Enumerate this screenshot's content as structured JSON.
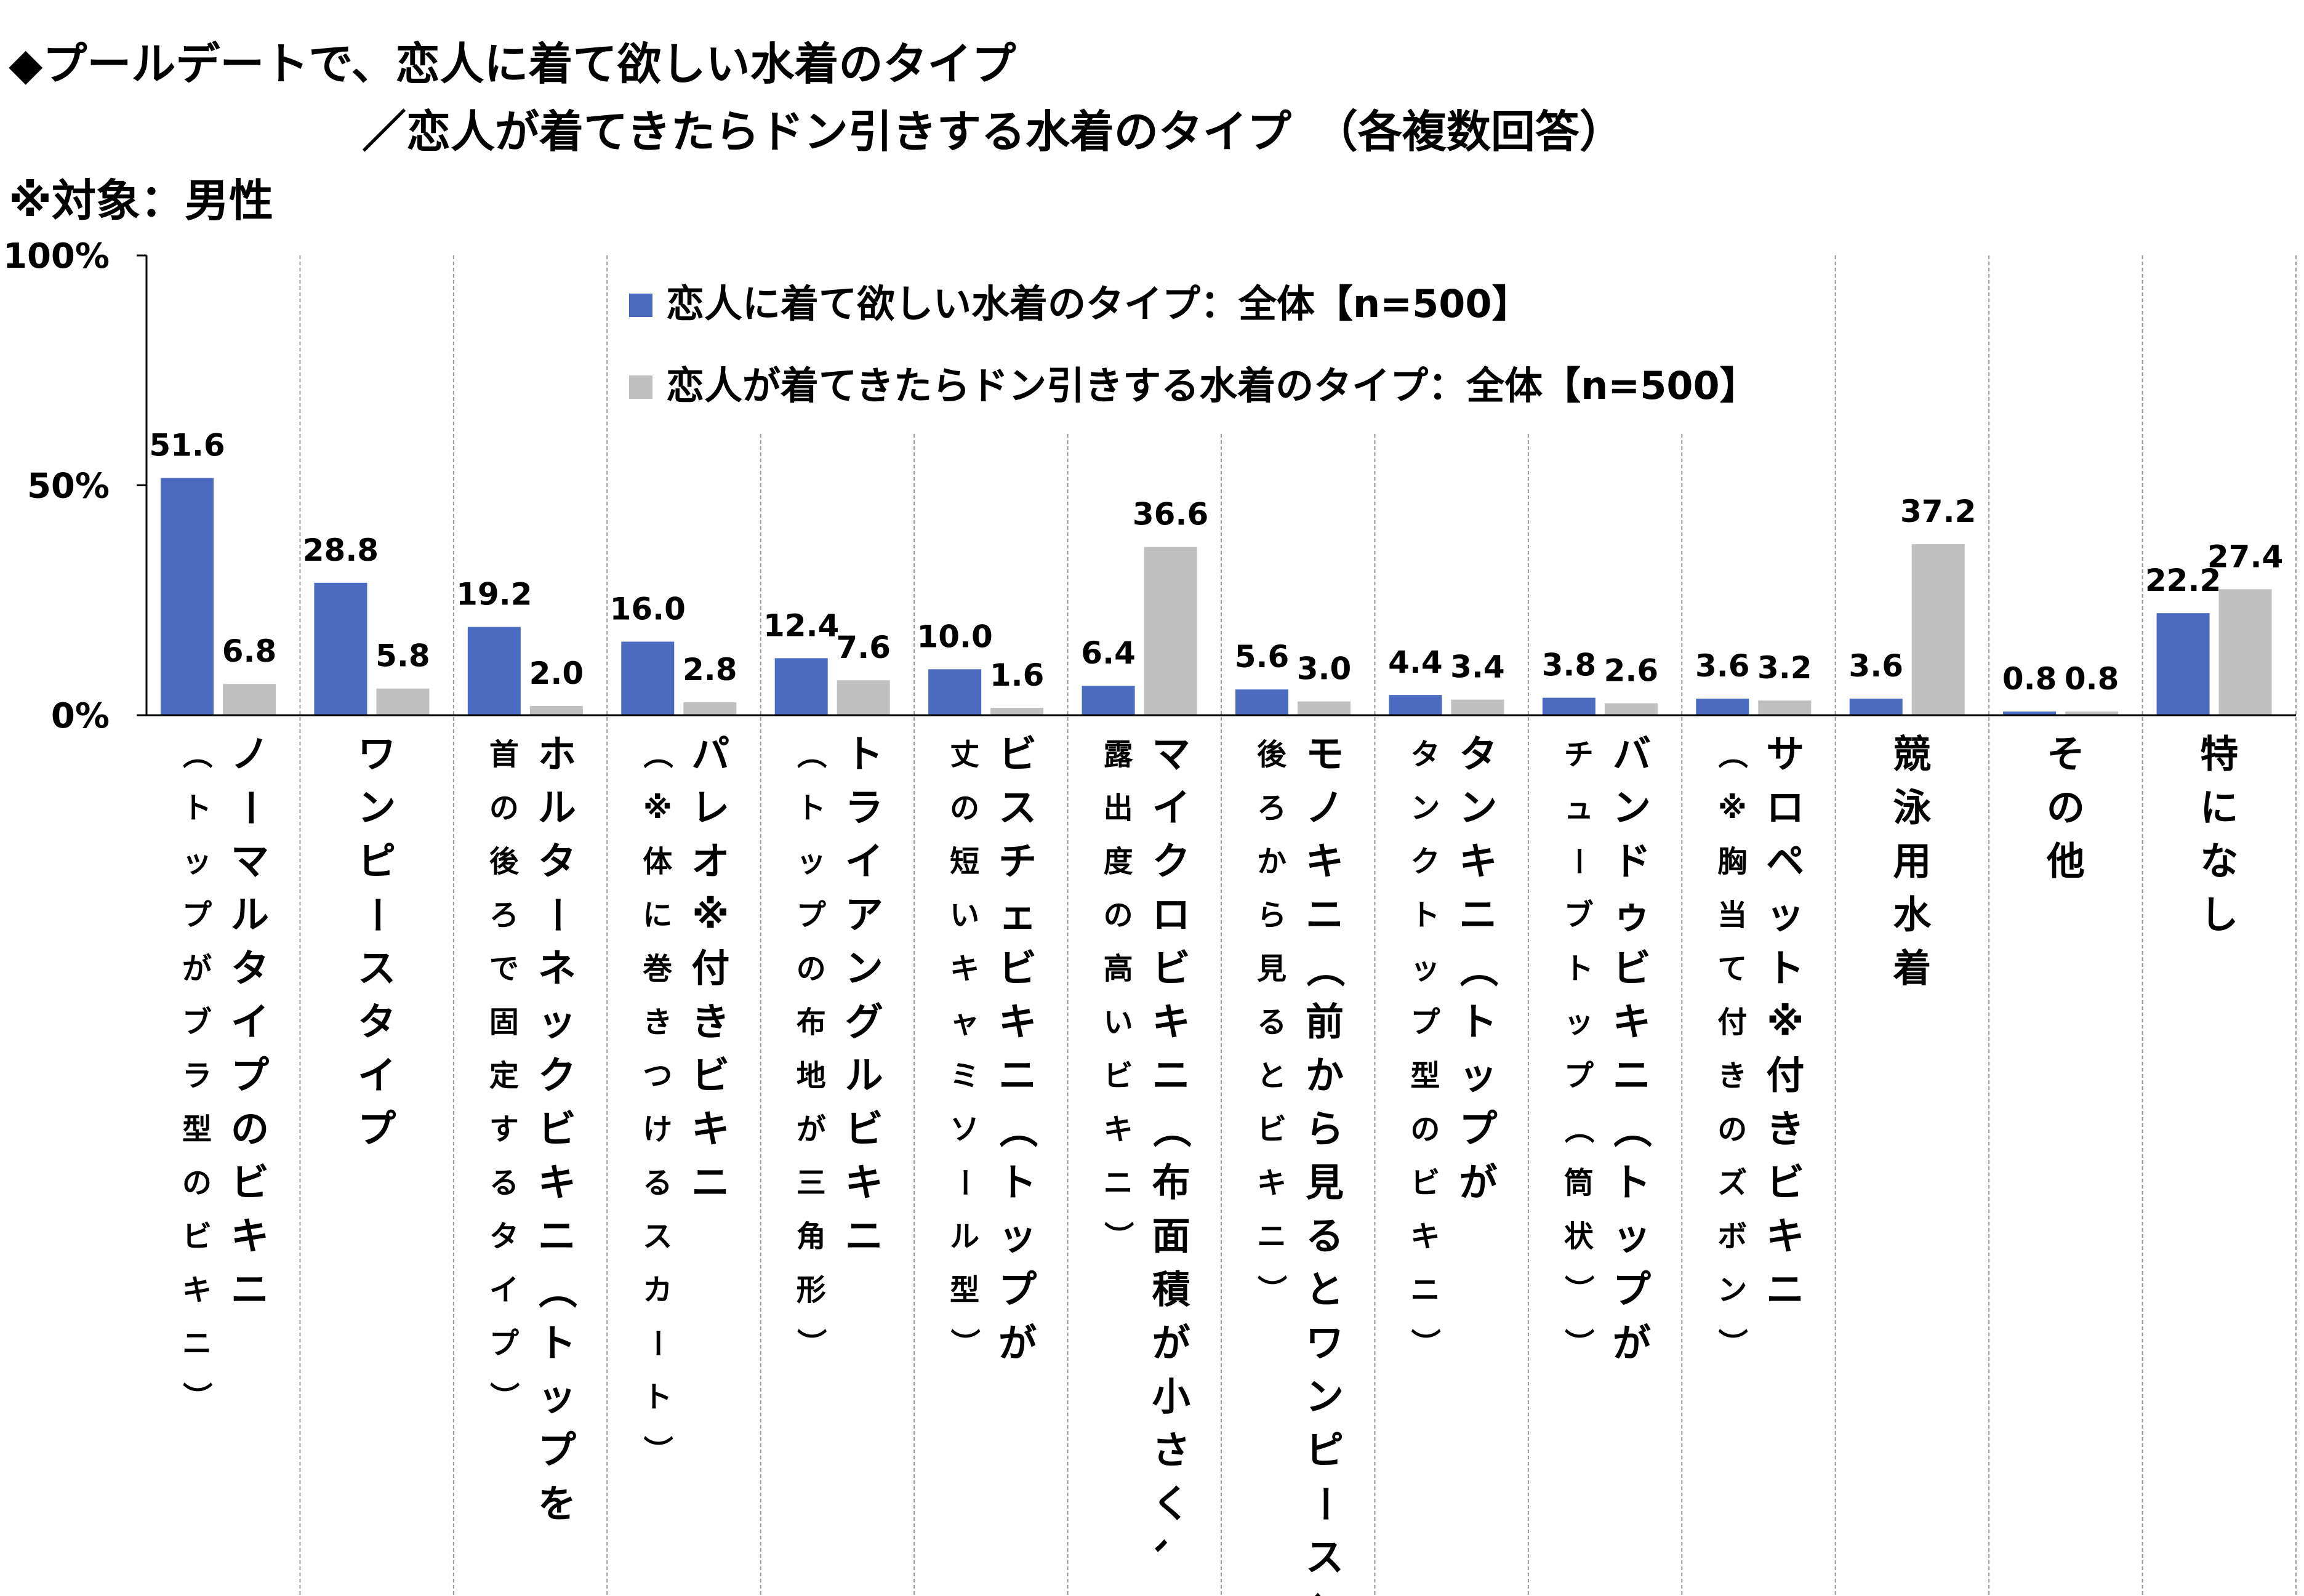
{
  "titles": {
    "line1": "◆プールデートで、恋人に着て欲しい水着のタイプ",
    "line2": "／恋人が着てきたらドン引きする水着のタイプ　（各複数回答）",
    "line3": "※対象：男性"
  },
  "colors": {
    "series1": "#4a6bc0",
    "series2": "#c0c0c0"
  },
  "chart_data": {
    "type": "bar",
    "ylim": [
      0,
      100
    ],
    "yticks": [
      "0%",
      "50%",
      "100%"
    ],
    "grid": "vertical dashed separators between categories",
    "legend_position": "top-center (inside plot)",
    "categories": [
      {
        "main": "ノーマルタイプのビキニ",
        "sub": "（トップがブラ型のビキニ）"
      },
      {
        "main": "ワンピースタイプ",
        "sub": ""
      },
      {
        "main": "ホルターネックビキニ（トップを",
        "sub": "首の後ろで固定するタイプ）"
      },
      {
        "main": "パレオ※付きビキニ",
        "sub": "（※体に巻きつけるスカート）"
      },
      {
        "main": "トライアングルビキニ",
        "sub": "（トップの布地が三角形）"
      },
      {
        "main": "ビスチェビキニ（トップが",
        "sub": "丈の短いキャミソール型）"
      },
      {
        "main": "マイクロビキニ（布面積が小さく、",
        "sub": "露出度の高いビキニ）"
      },
      {
        "main": "モノキニ（前から見るとワンピース、",
        "sub": "後ろから見るとビキニ）"
      },
      {
        "main": "タンキニ（トップが",
        "sub": "タンクトップ型のビキニ）"
      },
      {
        "main": "バンドゥビキニ（トップが",
        "sub": "チューブトップ（筒状））"
      },
      {
        "main": "サロペット※付きビキニ",
        "sub": "（※胸当て付きのズボン）"
      },
      {
        "main": "競泳用水着",
        "sub": ""
      },
      {
        "main": "その他",
        "sub": ""
      },
      {
        "main": "特になし",
        "sub": ""
      }
    ],
    "series": [
      {
        "name": "恋人に着て欲しい水着のタイプ：全体【n=500】",
        "values": [
          51.6,
          28.8,
          19.2,
          16.0,
          12.4,
          10.0,
          6.4,
          5.6,
          4.4,
          3.8,
          3.6,
          3.6,
          0.8,
          22.2
        ],
        "labels": [
          "51.6",
          "28.8",
          "19.2",
          "16.0",
          "12.4",
          "10.0",
          "6.4",
          "5.6",
          "4.4",
          "3.8",
          "3.6",
          "3.6",
          "0.8",
          "22.2"
        ]
      },
      {
        "name": "恋人が着てきたらドン引きする水着のタイプ：全体【n=500】",
        "values": [
          6.8,
          5.8,
          2.0,
          2.8,
          7.6,
          1.6,
          36.6,
          3.0,
          3.4,
          2.6,
          3.2,
          37.2,
          0.8,
          27.4
        ],
        "labels": [
          "6.8",
          "5.8",
          "2.0",
          "2.8",
          "7.6",
          "1.6",
          "36.6",
          "3.0",
          "3.4",
          "2.6",
          "3.2",
          "37.2",
          "0.8",
          "27.4"
        ]
      }
    ]
  }
}
